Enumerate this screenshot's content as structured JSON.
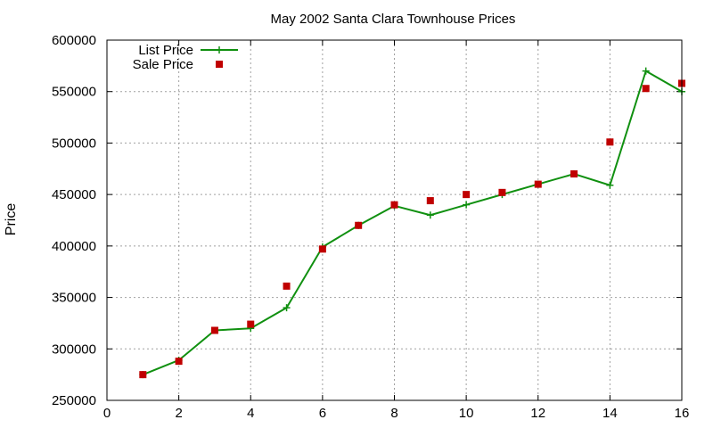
{
  "chart_data": {
    "type": "line",
    "title": "May 2002 Santa Clara Townhouse Prices",
    "xlabel": "",
    "ylabel": "Price",
    "xlim": [
      0,
      16
    ],
    "ylim": [
      250000,
      600000
    ],
    "xticks": [
      0,
      2,
      4,
      6,
      8,
      10,
      12,
      14,
      16
    ],
    "yticks": [
      250000,
      300000,
      350000,
      400000,
      450000,
      500000,
      550000,
      600000
    ],
    "grid": true,
    "legend_position": "top-left",
    "series": [
      {
        "name": "List Price",
        "style": "line-with-plus-markers",
        "color": "#109010",
        "x": [
          1,
          2,
          3,
          4,
          5,
          6,
          7,
          8,
          9,
          10,
          11,
          12,
          13,
          14,
          15,
          16
        ],
        "y": [
          275000,
          289000,
          318000,
          320000,
          340000,
          399000,
          420000,
          439000,
          430000,
          440000,
          450000,
          460000,
          470000,
          459000,
          570000,
          550000
        ]
      },
      {
        "name": "Sale Price",
        "style": "square-markers",
        "color": "#c00000",
        "x": [
          1,
          2,
          3,
          4,
          5,
          6,
          7,
          8,
          9,
          10,
          11,
          12,
          13,
          14,
          15,
          16
        ],
        "y": [
          275000,
          288000,
          318000,
          324000,
          361000,
          397000,
          420000,
          440000,
          444000,
          450000,
          452000,
          460000,
          470000,
          501000,
          553000,
          558000
        ]
      }
    ]
  }
}
